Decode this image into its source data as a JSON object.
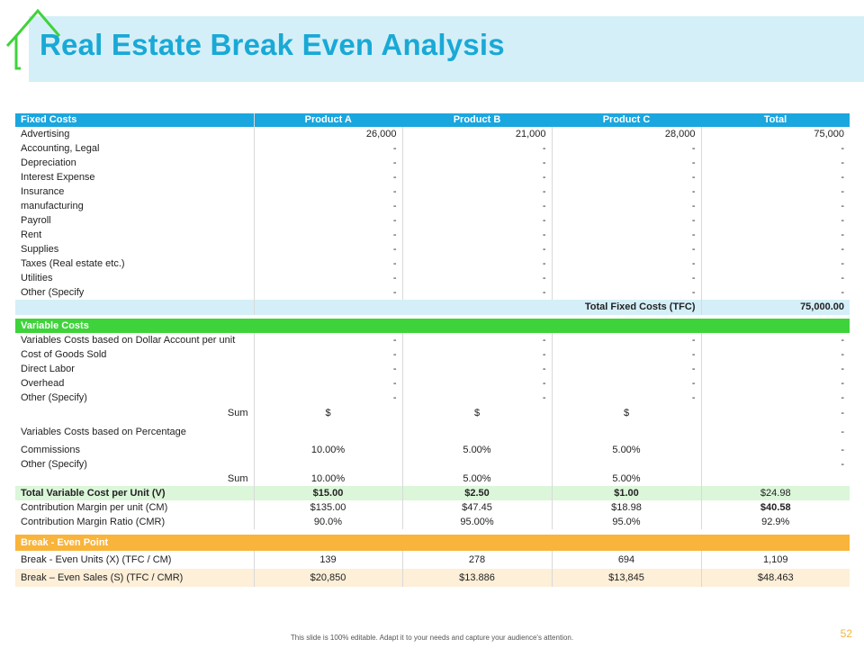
{
  "title": "Real Estate Break Even Analysis",
  "header": {
    "label": "Fixed Costs",
    "cols": [
      "Product A",
      "Product B",
      "Product C",
      "Total"
    ]
  },
  "fixed_rows": [
    {
      "label": "Advertising",
      "vals": [
        "26,000",
        "21,000",
        "28,000",
        "75,000"
      ]
    },
    {
      "label": "Accounting, Legal",
      "vals": [
        "-",
        "-",
        "-",
        "-"
      ]
    },
    {
      "label": "Depreciation",
      "vals": [
        "-",
        "-",
        "-",
        "-"
      ]
    },
    {
      "label": "Interest Expense",
      "vals": [
        "-",
        "-",
        "-",
        "-"
      ]
    },
    {
      "label": "Insurance",
      "vals": [
        "-",
        "-",
        "-",
        "-"
      ]
    },
    {
      "label": "manufacturing",
      "vals": [
        "-",
        "-",
        "-",
        "-"
      ]
    },
    {
      "label": "Payroll",
      "vals": [
        "-",
        "-",
        "-",
        "-"
      ]
    },
    {
      "label": "Rent",
      "vals": [
        "-",
        "-",
        "-",
        "-"
      ]
    },
    {
      "label": "Supplies",
      "vals": [
        "-",
        "-",
        "-",
        "-"
      ]
    },
    {
      "label": "Taxes (Real estate etc.)",
      "vals": [
        "-",
        "-",
        "-",
        "-"
      ]
    },
    {
      "label": "Utilities",
      "vals": [
        "-",
        "-",
        "-",
        "-"
      ]
    },
    {
      "label": "Other (Specify",
      "vals": [
        "-",
        "-",
        "-",
        "-"
      ]
    }
  ],
  "tfc": {
    "label": "Total Fixed Costs (TFC)",
    "value": "75,000.00"
  },
  "variable": {
    "header": "Variable Costs",
    "rows": [
      {
        "label": "Variables Costs based on Dollar Account per unit",
        "vals": [
          "-",
          "-",
          "-",
          "-"
        ]
      },
      {
        "label": "Cost of Goods Sold",
        "vals": [
          "-",
          "-",
          "-",
          "-"
        ]
      },
      {
        "label": "Direct Labor",
        "vals": [
          "-",
          "-",
          "-",
          "-"
        ]
      },
      {
        "label": "Overhead",
        "vals": [
          "-",
          "-",
          "-",
          "-"
        ]
      },
      {
        "label": "Other (Specify)",
        "vals": [
          "-",
          "-",
          "-",
          "-"
        ]
      }
    ],
    "sum1": {
      "label": "Sum",
      "vals": [
        "$",
        "$",
        "$",
        "-"
      ]
    },
    "pct_label": "Variables Costs based on Percentage",
    "pct_val": "-",
    "commissions": {
      "label": "Commissions",
      "vals": [
        "10.00%",
        "5.00%",
        "5.00%",
        "-"
      ]
    },
    "other": {
      "label": "Other (Specify)",
      "val": "-"
    },
    "sum2": {
      "label": "Sum",
      "vals": [
        "10.00%",
        "5.00%",
        "5.00%"
      ]
    },
    "tvc": {
      "label": "Total Variable Cost per Unit (V)",
      "vals": [
        "$15.00",
        "$2.50",
        "$1.00",
        "$24.98"
      ]
    },
    "cm": {
      "label": "Contribution Margin per unit (CM)",
      "vals": [
        "$135.00",
        "$47.45",
        "$18.98",
        "$40.58"
      ]
    },
    "cmr": {
      "label": "Contribution Margin Ratio (CMR)",
      "vals": [
        "90.0%",
        "95.00%",
        "95.0%",
        "92.9%"
      ]
    }
  },
  "breakeven": {
    "header": "Break - Even Point",
    "units": {
      "label": "Break - Even Units (X) (TFC / CM)",
      "vals": [
        "139",
        "278",
        "694",
        "1,109"
      ]
    },
    "sales": {
      "label": "Break – Even Sales (S) (TFC / CMR)",
      "vals": [
        "$20,850",
        "$13.886",
        "$13,845",
        "$48.463"
      ]
    }
  },
  "footer": "This slide is 100% editable. Adapt it to your needs and capture your audience's attention.",
  "page_number": "52",
  "colors": {
    "title": "#19a9d6",
    "title_band": "#d5eff8",
    "blue_header": "#1aa6de",
    "green_header": "#3fd33b",
    "orange_header": "#f9b43b",
    "house": "#3fd33b"
  }
}
